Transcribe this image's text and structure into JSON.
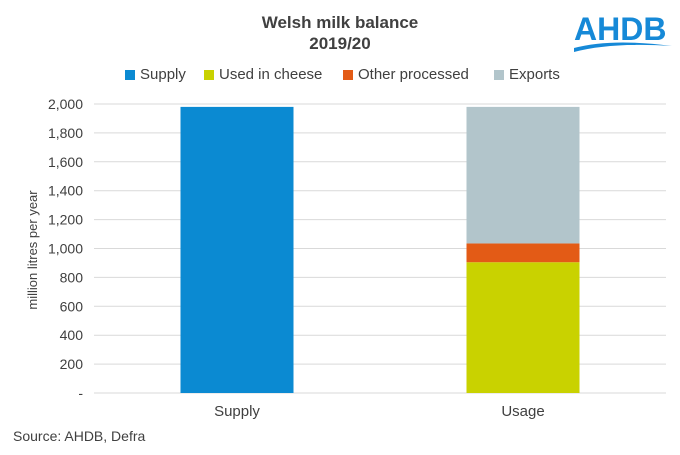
{
  "header": {
    "title_line1": "Welsh milk balance",
    "title_line2": "2019/20",
    "logo_text": "AHDB",
    "logo_color": "#1689d7"
  },
  "footer": {
    "source": "Source: AHDB, Defra"
  },
  "chart_data": {
    "type": "bar",
    "stacked": true,
    "title": "Welsh milk balance 2019/20",
    "xlabel": "",
    "ylabel": "million litres per year",
    "categories": [
      "Supply",
      "Usage"
    ],
    "ylim": [
      0,
      2000
    ],
    "yticks": [
      0,
      200,
      400,
      600,
      800,
      1000,
      1200,
      1400,
      1600,
      1800,
      2000
    ],
    "ytick_labels": [
      "-",
      "200",
      "400",
      "600",
      "800",
      "1,000",
      "1,200",
      "1,400",
      "1,600",
      "1,800",
      "2,000"
    ],
    "grid": true,
    "legend_position": "top",
    "series": [
      {
        "name": "Supply",
        "color": "#0b8ad2",
        "values": [
          1980,
          0
        ]
      },
      {
        "name": "Used in cheese",
        "color": "#c9d200",
        "values": [
          0,
          905
        ]
      },
      {
        "name": "Other processed",
        "color": "#e35b16",
        "values": [
          0,
          130
        ]
      },
      {
        "name": "Exports",
        "color": "#b2c5cb",
        "values": [
          0,
          945
        ]
      }
    ]
  }
}
